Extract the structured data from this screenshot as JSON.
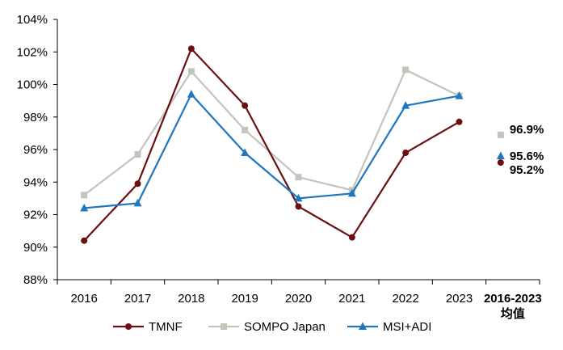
{
  "chart_data": {
    "type": "line",
    "categories": [
      "2016",
      "2017",
      "2018",
      "2019",
      "2020",
      "2021",
      "2022",
      "2023"
    ],
    "summary_category": {
      "line1": "2016-2023",
      "line2": "均值"
    },
    "y_tick_labels": [
      "88%",
      "90%",
      "92%",
      "94%",
      "96%",
      "98%",
      "100%",
      "102%",
      "104%"
    ],
    "ylim": [
      88,
      104
    ],
    "y_step": 2,
    "grid": false,
    "legend_position": "bottom",
    "series": [
      {
        "name": "TMNF",
        "color": "#6b0f12",
        "marker": "circle",
        "values": [
          90.4,
          93.9,
          102.2,
          98.7,
          92.5,
          90.6,
          95.8,
          97.7
        ],
        "average": 95.2,
        "average_label": "95.2%"
      },
      {
        "name": "SOMPO Japan",
        "color": "#c4c4bd",
        "marker": "square",
        "values": [
          93.2,
          95.7,
          100.8,
          97.2,
          94.3,
          93.5,
          100.9,
          99.3
        ],
        "average": 96.9,
        "average_label": "96.9%"
      },
      {
        "name": "MSI+ADI",
        "color": "#1f77c0",
        "marker": "triangle",
        "values": [
          92.4,
          92.7,
          99.4,
          95.8,
          93.0,
          93.3,
          98.7,
          99.3
        ],
        "average": 95.6,
        "average_label": "95.6%"
      }
    ]
  }
}
